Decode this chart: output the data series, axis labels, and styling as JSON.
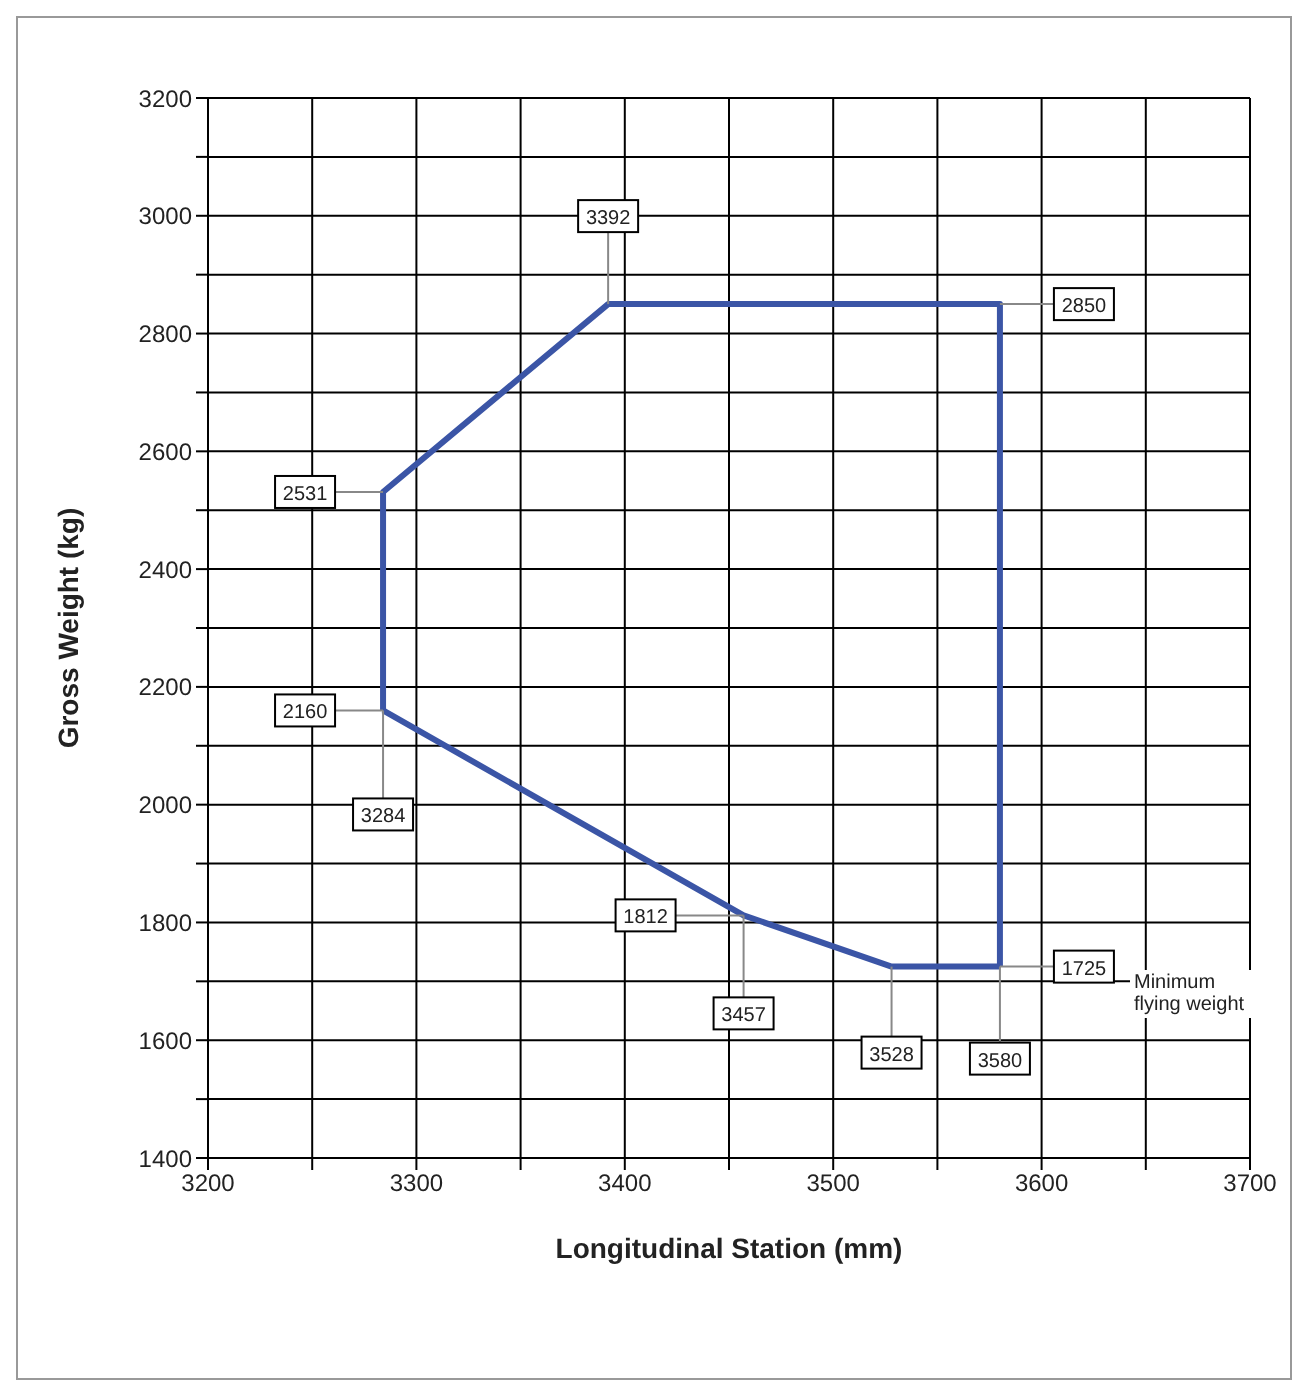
{
  "chart_data": {
    "type": "line",
    "xlabel": "Longitudinal Station (mm)",
    "ylabel": "Gross Weight (kg)",
    "series": [
      {
        "color": "#3b55a6",
        "x": [
          3284,
          3284,
          3392,
          3580,
          3580
        ],
        "values": [
          2160,
          2531,
          2850,
          2850,
          1725
        ]
      },
      {
        "color": "#3b55a6",
        "x": [
          3284,
          3457,
          3528,
          3580
        ],
        "values": [
          2160,
          1812,
          1725,
          1725
        ]
      }
    ],
    "xlim": [
      3200,
      3700
    ],
    "xticks": [
      3200,
      {
        "value": 3250,
        "label": null
      },
      3300,
      {
        "value": 3350,
        "label": null
      },
      3400,
      {
        "value": 3450,
        "label": null
      },
      3500,
      {
        "value": 3550,
        "label": null
      },
      3600,
      {
        "value": 3650,
        "label": null
      },
      3700
    ],
    "ylim": [
      1400,
      3200
    ],
    "yticks": [
      1400,
      {
        "value": 1500,
        "label": null
      },
      1600,
      {
        "value": 1700,
        "label": null
      },
      1800,
      {
        "value": 1900,
        "label": null
      },
      2000,
      {
        "value": 2100,
        "label": null
      },
      2200,
      {
        "value": 2300,
        "label": null
      },
      2400,
      {
        "value": 2500,
        "label": null
      },
      2600,
      {
        "value": 2700,
        "label": null
      },
      2800,
      {
        "value": 2900,
        "label": null
      },
      3000,
      {
        "value": 3100,
        "label": null
      },
      3200
    ],
    "grid": true,
    "marker": "none",
    "line_style": "solid",
    "annotations": [
      {
        "text": "3392",
        "x": 3392,
        "y": 2850
      },
      {
        "text": "2850",
        "x": 3580,
        "y": 2850
      },
      {
        "text": "2531",
        "x": 3284,
        "y": 2531
      },
      {
        "text": "2160",
        "x": 3284,
        "y": 2160
      },
      {
        "text": "3284",
        "x": 3284,
        "y": 2160
      },
      {
        "text": "1812",
        "x": 3457,
        "y": 1812
      },
      {
        "text": "3457",
        "x": 3457,
        "y": 1812
      },
      {
        "text": "3528",
        "x": 3528,
        "y": 1725
      },
      {
        "text": "3580",
        "x": 3580,
        "y": 1725
      },
      {
        "text": "1725",
        "x": 3580,
        "y": 1725
      },
      "Minimum flying weight"
    ]
  }
}
